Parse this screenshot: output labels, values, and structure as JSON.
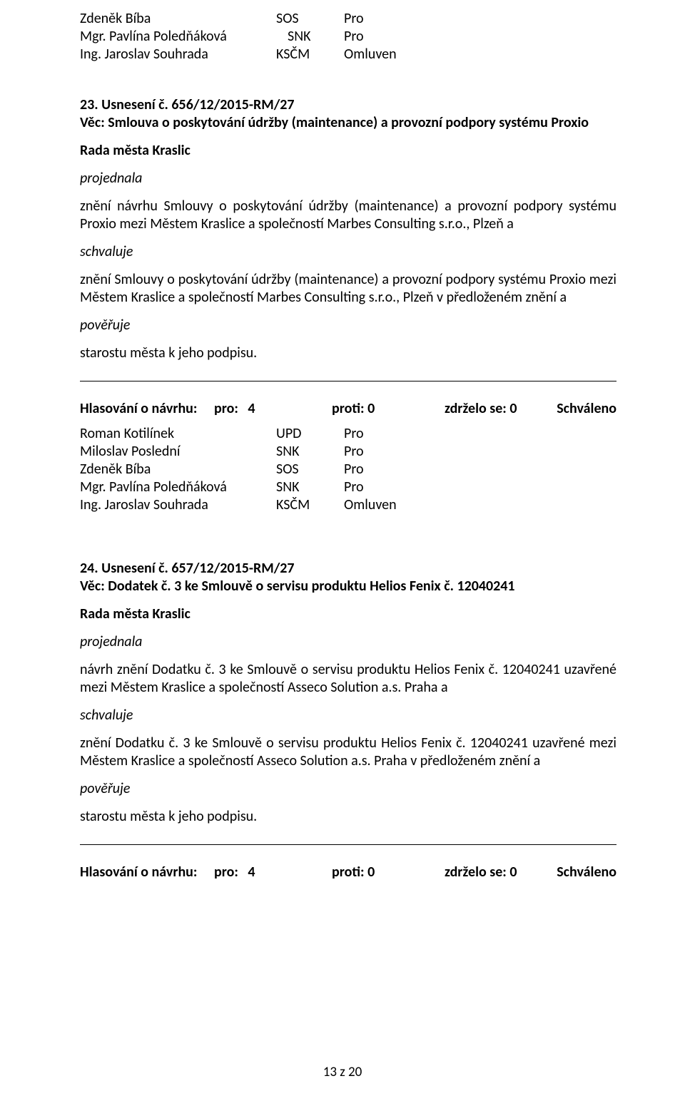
{
  "topMembers": [
    {
      "name": "Zdeněk Bíba",
      "party": "SOS",
      "vote": "Pro",
      "indent": false
    },
    {
      "name": "Mgr. Pavlína Poledňáková",
      "party": "SNK",
      "vote": "Pro",
      "indent": true
    },
    {
      "name": "Ing. Jaroslav Souhrada",
      "party": "KSČM",
      "vote": "Omluven",
      "indent": false
    }
  ],
  "res23": {
    "num": "23. Usnesení č. 656/12/2015-RM/27",
    "subject": "Věc: Smlouva o poskytování údržby (maintenance) a provozní podpory systému Proxio",
    "council": "Rada města Kraslic",
    "p1label": "projednala",
    "p1": "znění návrhu Smlouvy o poskytování údržby (maintenance) a provozní podpory systému Proxio mezi Městem Kraslice a společností Marbes Consulting s.r.o., Plzeň a",
    "p2label": "schvaluje",
    "p2": "znění Smlouvy o poskytování údržby (maintenance) a provozní podpory systému Proxio mezi Městem Kraslice a společností Marbes Consulting s.r.o., Plzeň v předloženém znění a",
    "p3label": "pověřuje",
    "p3": "starostu města k jeho podpisu."
  },
  "vote": {
    "label": "Hlasování o návrhu:",
    "pro": "pro:   4",
    "proti": "proti: 0",
    "zdrz": "zdrželo se: 0",
    "result": "Schváleno"
  },
  "members": [
    {
      "name": "Roman Kotilínek",
      "party": "UPD",
      "vote": "Pro",
      "indent": false
    },
    {
      "name": "Miloslav Poslední",
      "party": "SNK",
      "vote": "Pro",
      "indent": false
    },
    {
      "name": "Zdeněk Bíba",
      "party": "SOS",
      "vote": "Pro",
      "indent": false
    },
    {
      "name": "Mgr. Pavlína Poledňáková",
      "party": "SNK",
      "vote": "Pro",
      "indent": false
    },
    {
      "name": "Ing. Jaroslav Souhrada",
      "party": "KSČM",
      "vote": "Omluven",
      "indent": false
    }
  ],
  "res24": {
    "num": "24. Usnesení č. 657/12/2015-RM/27",
    "subject": "Věc: Dodatek č. 3 ke Smlouvě o servisu produktu Helios Fenix č. 12040241",
    "council": "Rada města Kraslic",
    "p1label": "projednala",
    "p1": "návrh znění Dodatku č. 3 ke Smlouvě o servisu produktu Helios Fenix č. 12040241 uzavřené mezi Městem Kraslice a společností Asseco Solution a.s. Praha a",
    "p2label": "schvaluje",
    "p2": "znění Dodatku č. 3 ke Smlouvě o servisu produktu Helios Fenix č. 12040241 uzavřené mezi Městem Kraslice a společností Asseco Solution a.s. Praha v předloženém znění a",
    "p3label": "pověřuje",
    "p3": "starostu města k jeho podpisu."
  },
  "pageNum": "13 z 20"
}
